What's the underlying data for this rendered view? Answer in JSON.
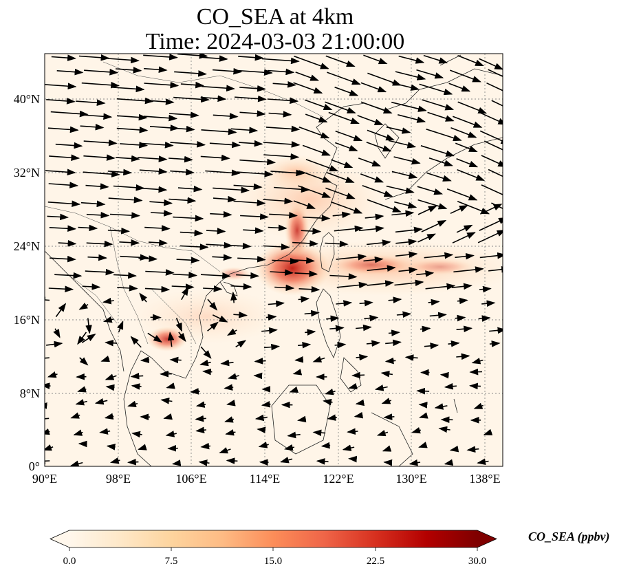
{
  "title_line1": "CO_SEA at 4km",
  "title_line2": "Time: 2024-03-03 21:00:00",
  "map": {
    "lon_range": [
      90,
      140
    ],
    "lat_range": [
      0,
      45
    ],
    "lon_ticks": [
      "90°E",
      "98°E",
      "106°E",
      "114°E",
      "122°E",
      "130°E",
      "138°E"
    ],
    "lat_ticks": [
      "0°",
      "8°N",
      "16°N",
      "24°N",
      "32°N",
      "40°N"
    ],
    "gridlines": "dotted"
  },
  "colorbar": {
    "label": "CO_SEA (ppbv)",
    "ticks": [
      "0.0",
      "7.5",
      "15.0",
      "22.5",
      "30.0"
    ],
    "range": [
      0,
      30
    ],
    "colormap": "OrRd",
    "extend": "both",
    "colors": [
      "#fff7ec",
      "#fee8c8",
      "#fdd49e",
      "#fdbb84",
      "#fc8d59",
      "#ef6548",
      "#d7301f",
      "#b30000",
      "#7f0000"
    ]
  }
}
